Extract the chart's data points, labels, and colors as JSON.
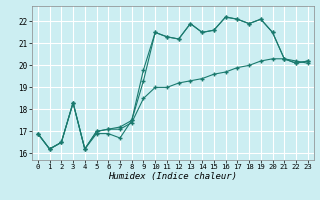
{
  "title": "",
  "xlabel": "Humidex (Indice chaleur)",
  "bg_color": "#cceef2",
  "grid_color": "#ffffff",
  "line_color": "#1a7a6e",
  "xlim": [
    -0.5,
    23.5
  ],
  "ylim": [
    15.7,
    22.7
  ],
  "yticks": [
    16,
    17,
    18,
    19,
    20,
    21,
    22
  ],
  "xticks": [
    0,
    1,
    2,
    3,
    4,
    5,
    6,
    7,
    8,
    9,
    10,
    11,
    12,
    13,
    14,
    15,
    16,
    17,
    18,
    19,
    20,
    21,
    22,
    23
  ],
  "line1_x": [
    0,
    1,
    2,
    3,
    4,
    5,
    6,
    7,
    8,
    9,
    10,
    11,
    12,
    13,
    14,
    15,
    16,
    17,
    18,
    19,
    20,
    21,
    22,
    23
  ],
  "line1_y": [
    16.9,
    16.2,
    16.5,
    18.3,
    16.2,
    16.9,
    16.9,
    16.7,
    17.5,
    19.8,
    21.5,
    21.3,
    21.2,
    21.9,
    21.5,
    21.6,
    22.2,
    22.1,
    21.9,
    22.1,
    21.5,
    20.3,
    20.1,
    20.2
  ],
  "line2_x": [
    0,
    1,
    2,
    3,
    4,
    5,
    6,
    7,
    8,
    9,
    10,
    11,
    12,
    13,
    14,
    15,
    16,
    17,
    18,
    19,
    20,
    21,
    22,
    23
  ],
  "line2_y": [
    16.9,
    16.2,
    16.5,
    18.3,
    16.2,
    17.0,
    17.1,
    17.1,
    17.4,
    18.5,
    19.0,
    19.0,
    19.2,
    19.3,
    19.4,
    19.6,
    19.7,
    19.9,
    20.0,
    20.2,
    20.3,
    20.3,
    20.2,
    20.1
  ],
  "line3_x": [
    0,
    1,
    2,
    3,
    4,
    5,
    6,
    7,
    8,
    9,
    10,
    11,
    12,
    13,
    14,
    15,
    16,
    17,
    18,
    19,
    20,
    21,
    22,
    23
  ],
  "line3_y": [
    16.9,
    16.2,
    16.5,
    18.3,
    16.2,
    17.0,
    17.1,
    17.2,
    17.5,
    19.3,
    21.5,
    21.3,
    21.2,
    21.9,
    21.5,
    21.6,
    22.2,
    22.1,
    21.9,
    22.1,
    21.5,
    20.3,
    20.1,
    20.2
  ]
}
